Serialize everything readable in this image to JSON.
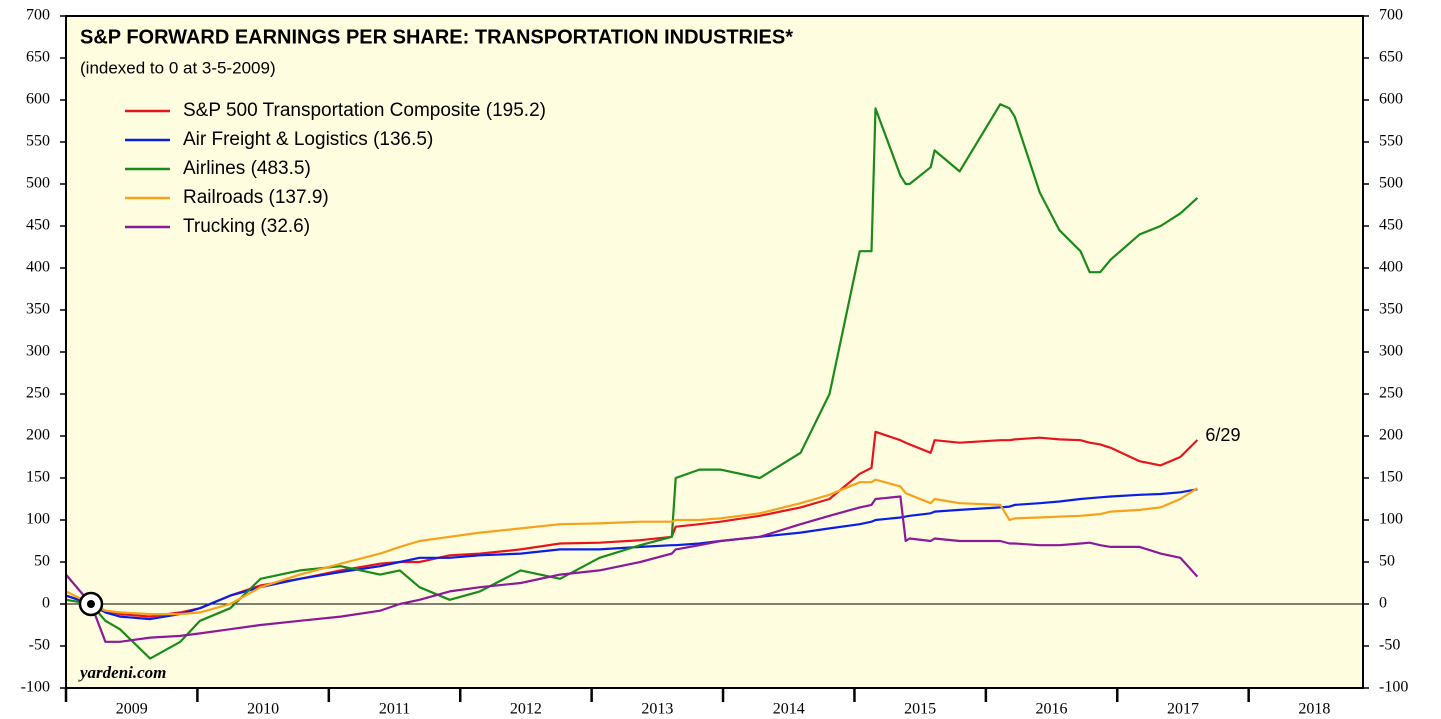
{
  "chart_data": {
    "type": "line",
    "title": "S&P FORWARD EARNINGS PER SHARE: TRANSPORTATION INDUSTRIES*",
    "subtitle": "(indexed to 0 at 3-5-2009)",
    "annotations": [
      "6/29",
      "yardeni.com"
    ],
    "xlim": [
      2009,
      2018.87
    ],
    "xticks": [
      2009,
      2010,
      2011,
      2012,
      2013,
      2014,
      2015,
      2016,
      2017,
      2018
    ],
    "ylim": [
      -100,
      700
    ],
    "yticks": [
      -100,
      -50,
      0,
      50,
      100,
      150,
      200,
      250,
      300,
      350,
      400,
      450,
      500,
      550,
      600,
      650,
      700
    ],
    "y2lim": [
      -100,
      700
    ],
    "y2ticks": [
      -100,
      -50,
      0,
      50,
      100,
      150,
      200,
      250,
      300,
      350,
      400,
      450,
      500,
      550,
      600,
      650,
      700
    ],
    "x": [
      2009.0,
      2009.19,
      2009.3,
      2009.41,
      2009.64,
      2009.87,
      2010.02,
      2010.25,
      2010.48,
      2010.78,
      2011.09,
      2011.39,
      2011.54,
      2011.69,
      2011.92,
      2012.15,
      2012.46,
      2012.76,
      2013.06,
      2013.37,
      2013.61,
      2013.64,
      2013.82,
      2013.98,
      2014.28,
      2014.59,
      2014.81,
      2015.04,
      2015.13,
      2015.16,
      2015.35,
      2015.39,
      2015.42,
      2015.58,
      2015.61,
      2015.8,
      2016.11,
      2016.18,
      2016.22,
      2016.41,
      2016.56,
      2016.72,
      2016.79,
      2016.87,
      2016.95,
      2017.17,
      2017.33,
      2017.48,
      2017.61
    ],
    "series": [
      {
        "name": "S&P 500 Transportation Composite (195.2)",
        "color": "#e8141c",
        "values": [
          10,
          0,
          -8,
          -12,
          -15,
          -10,
          -5,
          10,
          22,
          30,
          40,
          48,
          50,
          50,
          58,
          60,
          65,
          72,
          73,
          76,
          80,
          92,
          95,
          98,
          105,
          115,
          125,
          155,
          162,
          205,
          195,
          192,
          190,
          180,
          195,
          192,
          195,
          195,
          196,
          198,
          196,
          195,
          192,
          190,
          186,
          170,
          165,
          175,
          195.2
        ]
      },
      {
        "name": "Air Freight & Logistics (136.5)",
        "color": "#0a1ee6",
        "values": [
          10,
          0,
          -10,
          -15,
          -18,
          -12,
          -5,
          10,
          20,
          30,
          38,
          45,
          50,
          55,
          55,
          58,
          60,
          65,
          65,
          68,
          70,
          70,
          72,
          75,
          80,
          85,
          90,
          95,
          98,
          100,
          103,
          104,
          105,
          108,
          110,
          112,
          115,
          116,
          118,
          120,
          122,
          125,
          126,
          127,
          128,
          130,
          131,
          133,
          136.5
        ]
      },
      {
        "name": "Airlines (483.5)",
        "color": "#1a8a1a",
        "values": [
          5,
          0,
          -20,
          -30,
          -65,
          -45,
          -20,
          -5,
          30,
          40,
          45,
          35,
          40,
          20,
          5,
          15,
          40,
          30,
          55,
          70,
          80,
          150,
          160,
          160,
          150,
          180,
          250,
          420,
          420,
          590,
          510,
          500,
          500,
          520,
          540,
          515,
          595,
          590,
          580,
          490,
          445,
          420,
          395,
          395,
          410,
          440,
          450,
          465,
          483.5
        ]
      },
      {
        "name": "Railroads (137.9)",
        "color": "#f7a21b",
        "values": [
          15,
          0,
          -8,
          -10,
          -12,
          -12,
          -10,
          0,
          20,
          35,
          48,
          60,
          68,
          75,
          80,
          85,
          90,
          95,
          96,
          98,
          98,
          100,
          100,
          102,
          108,
          120,
          130,
          145,
          145,
          148,
          140,
          132,
          130,
          120,
          125,
          120,
          118,
          100,
          102,
          103,
          104,
          105,
          106,
          107,
          110,
          112,
          115,
          125,
          137.9
        ]
      },
      {
        "name": "Trucking (32.6)",
        "color": "#8b1a9b",
        "values": [
          35,
          0,
          -45,
          -45,
          -40,
          -38,
          -35,
          -30,
          -25,
          -20,
          -15,
          -8,
          0,
          5,
          15,
          20,
          25,
          35,
          40,
          50,
          60,
          65,
          70,
          75,
          80,
          95,
          105,
          115,
          118,
          125,
          128,
          75,
          78,
          75,
          78,
          75,
          75,
          72,
          72,
          70,
          70,
          72,
          73,
          70,
          68,
          68,
          60,
          55,
          32.6
        ]
      }
    ],
    "legend": "upper left",
    "zero_line": true,
    "background": "#fffde0"
  }
}
